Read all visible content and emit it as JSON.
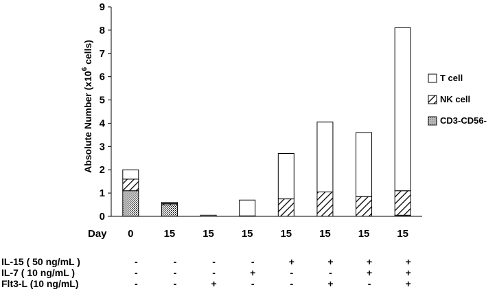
{
  "chart_data": {
    "type": "bar",
    "stacked": true,
    "ylabel_main": "Absolute Number (x10",
    "ylabel_exp": "6",
    "ylabel_tail": " cells)",
    "yticks": [
      "0",
      "1",
      "2",
      "3",
      "4",
      "5",
      "6",
      "7",
      "8",
      "9"
    ],
    "ylim": [
      0,
      9
    ],
    "x_row_label": "Day",
    "categories": [
      "0",
      "15",
      "15",
      "15",
      "15",
      "15",
      "15",
      "15"
    ],
    "series": [
      {
        "name": "CD3-CD56-",
        "pattern": "dots",
        "values": [
          1.1,
          0.5,
          0.0,
          0.0,
          0.0,
          0.0,
          0.0,
          0.05
        ]
      },
      {
        "name": "NK cell",
        "pattern": "hatch",
        "values": [
          0.5,
          0.05,
          0.0,
          0.02,
          0.75,
          1.05,
          0.85,
          1.05
        ]
      },
      {
        "name": "T cell",
        "pattern": "open",
        "values": [
          0.4,
          0.05,
          0.05,
          0.68,
          1.95,
          3.0,
          2.75,
          7.0
        ]
      }
    ],
    "legend_position": "right",
    "conditions": [
      {
        "label": "IL-15 ( 50 ng/mL )",
        "marks": [
          "-",
          "-",
          "-",
          "-",
          "+",
          "+",
          "+",
          "+"
        ]
      },
      {
        "label": "IL-7 ( 10 ng/mL )",
        "marks": [
          "-",
          "-",
          "-",
          "+",
          "-",
          "-",
          "+",
          "+"
        ]
      },
      {
        "label": "Flt3-L (10 ng/mL)",
        "marks": [
          "-",
          "-",
          "+",
          "-",
          "-",
          "+",
          "-",
          "+"
        ]
      }
    ]
  }
}
